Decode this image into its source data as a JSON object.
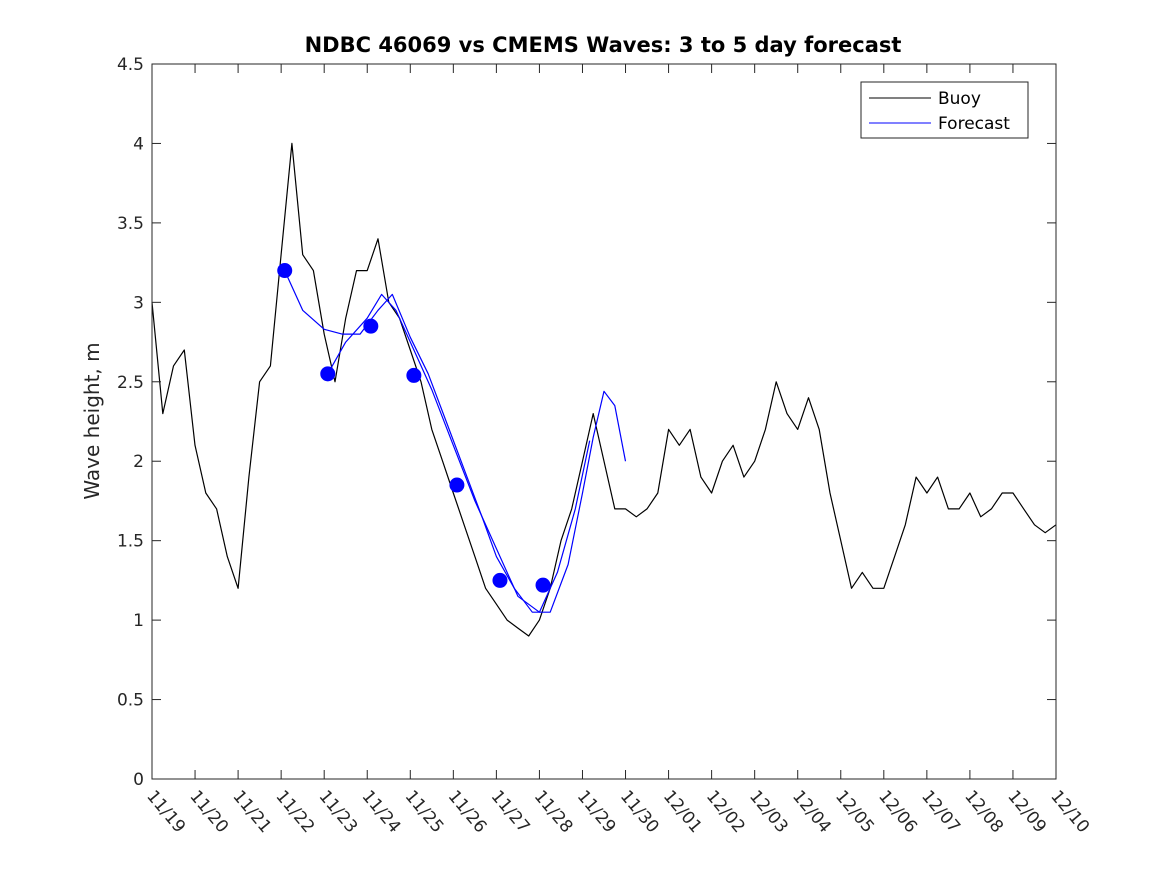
{
  "chart_data": {
    "type": "line",
    "title": "NDBC 46069 vs CMEMS Waves: 3 to 5 day forecast",
    "xlabel": "",
    "ylabel": "Wave height, m",
    "x_axis": {
      "kind": "date",
      "range": [
        "11/19",
        "12/10"
      ],
      "ticks": [
        "11/19",
        "11/20",
        "11/21",
        "11/22",
        "11/23",
        "11/24",
        "11/25",
        "11/26",
        "11/27",
        "11/28",
        "11/29",
        "11/30",
        "12/01",
        "12/02",
        "12/03",
        "12/04",
        "12/05",
        "12/06",
        "12/07",
        "12/08",
        "12/09",
        "12/10"
      ]
    },
    "ylim": [
      0,
      4.5
    ],
    "y_ticks": [
      0,
      0.5,
      1,
      1.5,
      2,
      2.5,
      3,
      3.5,
      4,
      4.5
    ],
    "grid": false,
    "legend": {
      "placement": "top-right",
      "entries": [
        "Buoy",
        "Forecast"
      ]
    },
    "colors": {
      "buoy": "#000000",
      "forecast": "#0000ff"
    },
    "series": [
      {
        "name": "Buoy",
        "x": [
          "11/19 00:00",
          "11/19 06:00",
          "11/19 12:00",
          "11/19 18:00",
          "11/20 00:00",
          "11/20 06:00",
          "11/20 12:00",
          "11/20 18:00",
          "11/21 00:00",
          "11/21 06:00",
          "11/21 12:00",
          "11/21 18:00",
          "11/22 00:00",
          "11/22 06:00",
          "11/22 12:00",
          "11/22 18:00",
          "11/23 00:00",
          "11/23 06:00",
          "11/23 12:00",
          "11/23 18:00",
          "11/24 00:00",
          "11/24 06:00",
          "11/24 12:00",
          "11/24 18:00",
          "11/25 00:00",
          "11/25 06:00",
          "11/25 12:00",
          "11/25 18:00",
          "11/26 00:00",
          "11/26 06:00",
          "11/26 12:00",
          "11/26 18:00",
          "11/27 00:00",
          "11/27 06:00",
          "11/27 12:00",
          "11/27 18:00",
          "11/28 00:00",
          "11/28 06:00",
          "11/28 12:00",
          "11/28 18:00",
          "11/29 00:00",
          "11/29 06:00",
          "11/29 12:00",
          "11/29 18:00",
          "11/30 00:00",
          "11/30 06:00",
          "11/30 12:00",
          "11/30 18:00",
          "12/01 00:00",
          "12/01 06:00",
          "12/01 12:00",
          "12/01 18:00",
          "12/02 00:00",
          "12/02 06:00",
          "12/02 12:00",
          "12/02 18:00",
          "12/03 00:00",
          "12/03 06:00",
          "12/03 12:00",
          "12/03 18:00",
          "12/04 00:00",
          "12/04 06:00",
          "12/04 12:00",
          "12/04 18:00",
          "12/05 00:00",
          "12/05 06:00",
          "12/05 12:00",
          "12/05 18:00",
          "12/06 00:00",
          "12/06 06:00",
          "12/06 12:00",
          "12/06 18:00",
          "12/07 00:00",
          "12/07 06:00",
          "12/07 12:00",
          "12/07 18:00",
          "12/08 00:00",
          "12/08 06:00",
          "12/08 12:00",
          "12/08 18:00",
          "12/09 00:00",
          "12/09 06:00",
          "12/09 12:00",
          "12/09 18:00",
          "12/10 00:00"
        ],
        "values": [
          3.0,
          2.3,
          2.6,
          2.7,
          2.1,
          1.8,
          1.7,
          1.4,
          1.2,
          1.9,
          2.5,
          2.6,
          3.3,
          4.0,
          3.3,
          3.2,
          2.8,
          2.5,
          2.9,
          3.2,
          3.2,
          3.4,
          3.0,
          2.9,
          2.7,
          2.5,
          2.2,
          2.0,
          1.8,
          1.6,
          1.4,
          1.2,
          1.1,
          1.0,
          0.95,
          0.9,
          1.0,
          1.2,
          1.5,
          1.7,
          2.0,
          2.3,
          2.0,
          1.7,
          1.7,
          1.65,
          1.7,
          1.8,
          2.2,
          2.1,
          2.2,
          1.9,
          1.8,
          2.0,
          2.1,
          1.9,
          2.0,
          2.2,
          2.5,
          2.3,
          2.2,
          2.4,
          2.2,
          1.8,
          1.5,
          1.2,
          1.3,
          1.2,
          1.2,
          1.4,
          1.6,
          1.9,
          1.8,
          1.9,
          1.7,
          1.7,
          1.8,
          1.65,
          1.7,
          1.8,
          1.8,
          1.7,
          1.6,
          1.55,
          1.6
        ]
      },
      {
        "name": "Forecast",
        "x": [
          "11/22 02:00",
          "11/22 12:00",
          "11/23 00:00",
          "11/23 10:00",
          "11/23 20:00",
          "11/24 06:00",
          "11/24 14:00",
          "11/25 00:00",
          "11/25 10:00",
          "11/25 20:00",
          "11/26 06:00",
          "11/26 16:00",
          "11/27 00:00",
          "11/27 10:00",
          "11/27 20:00",
          "11/28 06:00",
          "11/28 16:00",
          "11/29 00:00",
          "11/29 06:00",
          "11/29 12:00",
          "11/29 18:00",
          "11/30 00:00"
        ],
        "values": [
          3.2,
          2.95,
          2.83,
          2.8,
          2.8,
          2.95,
          3.05,
          2.78,
          2.55,
          2.25,
          1.95,
          1.65,
          1.4,
          1.2,
          1.05,
          1.05,
          1.35,
          1.8,
          2.15,
          2.44,
          2.35,
          2.0
        ]
      },
      {
        "name": "Forecast",
        "x": [
          "11/23 02:00",
          "11/23 12:00",
          "11/24 00:00",
          "11/24 08:00",
          "11/24 16:00",
          "11/25 02:00",
          "11/25 12:00",
          "11/26 00:00",
          "11/26 12:00",
          "11/27 00:00",
          "11/27 12:00",
          "11/28 00:00",
          "11/28 10:00",
          "11/28 20:00",
          "11/29 04:00"
        ],
        "values": [
          2.55,
          2.75,
          2.9,
          3.05,
          2.95,
          2.7,
          2.45,
          2.1,
          1.75,
          1.45,
          1.15,
          1.05,
          1.3,
          1.7,
          2.13
        ]
      },
      {
        "name": "Forecast",
        "x": [
          "11/22 02:00",
          "11/23 02:00",
          "11/24 02:00",
          "11/25 02:00",
          "11/26 02:00",
          "11/27 02:00",
          "11/28 02:00"
        ],
        "values": [
          3.2,
          2.55,
          2.85,
          2.54,
          1.85,
          1.25,
          1.22
        ],
        "marker": "o"
      }
    ]
  }
}
